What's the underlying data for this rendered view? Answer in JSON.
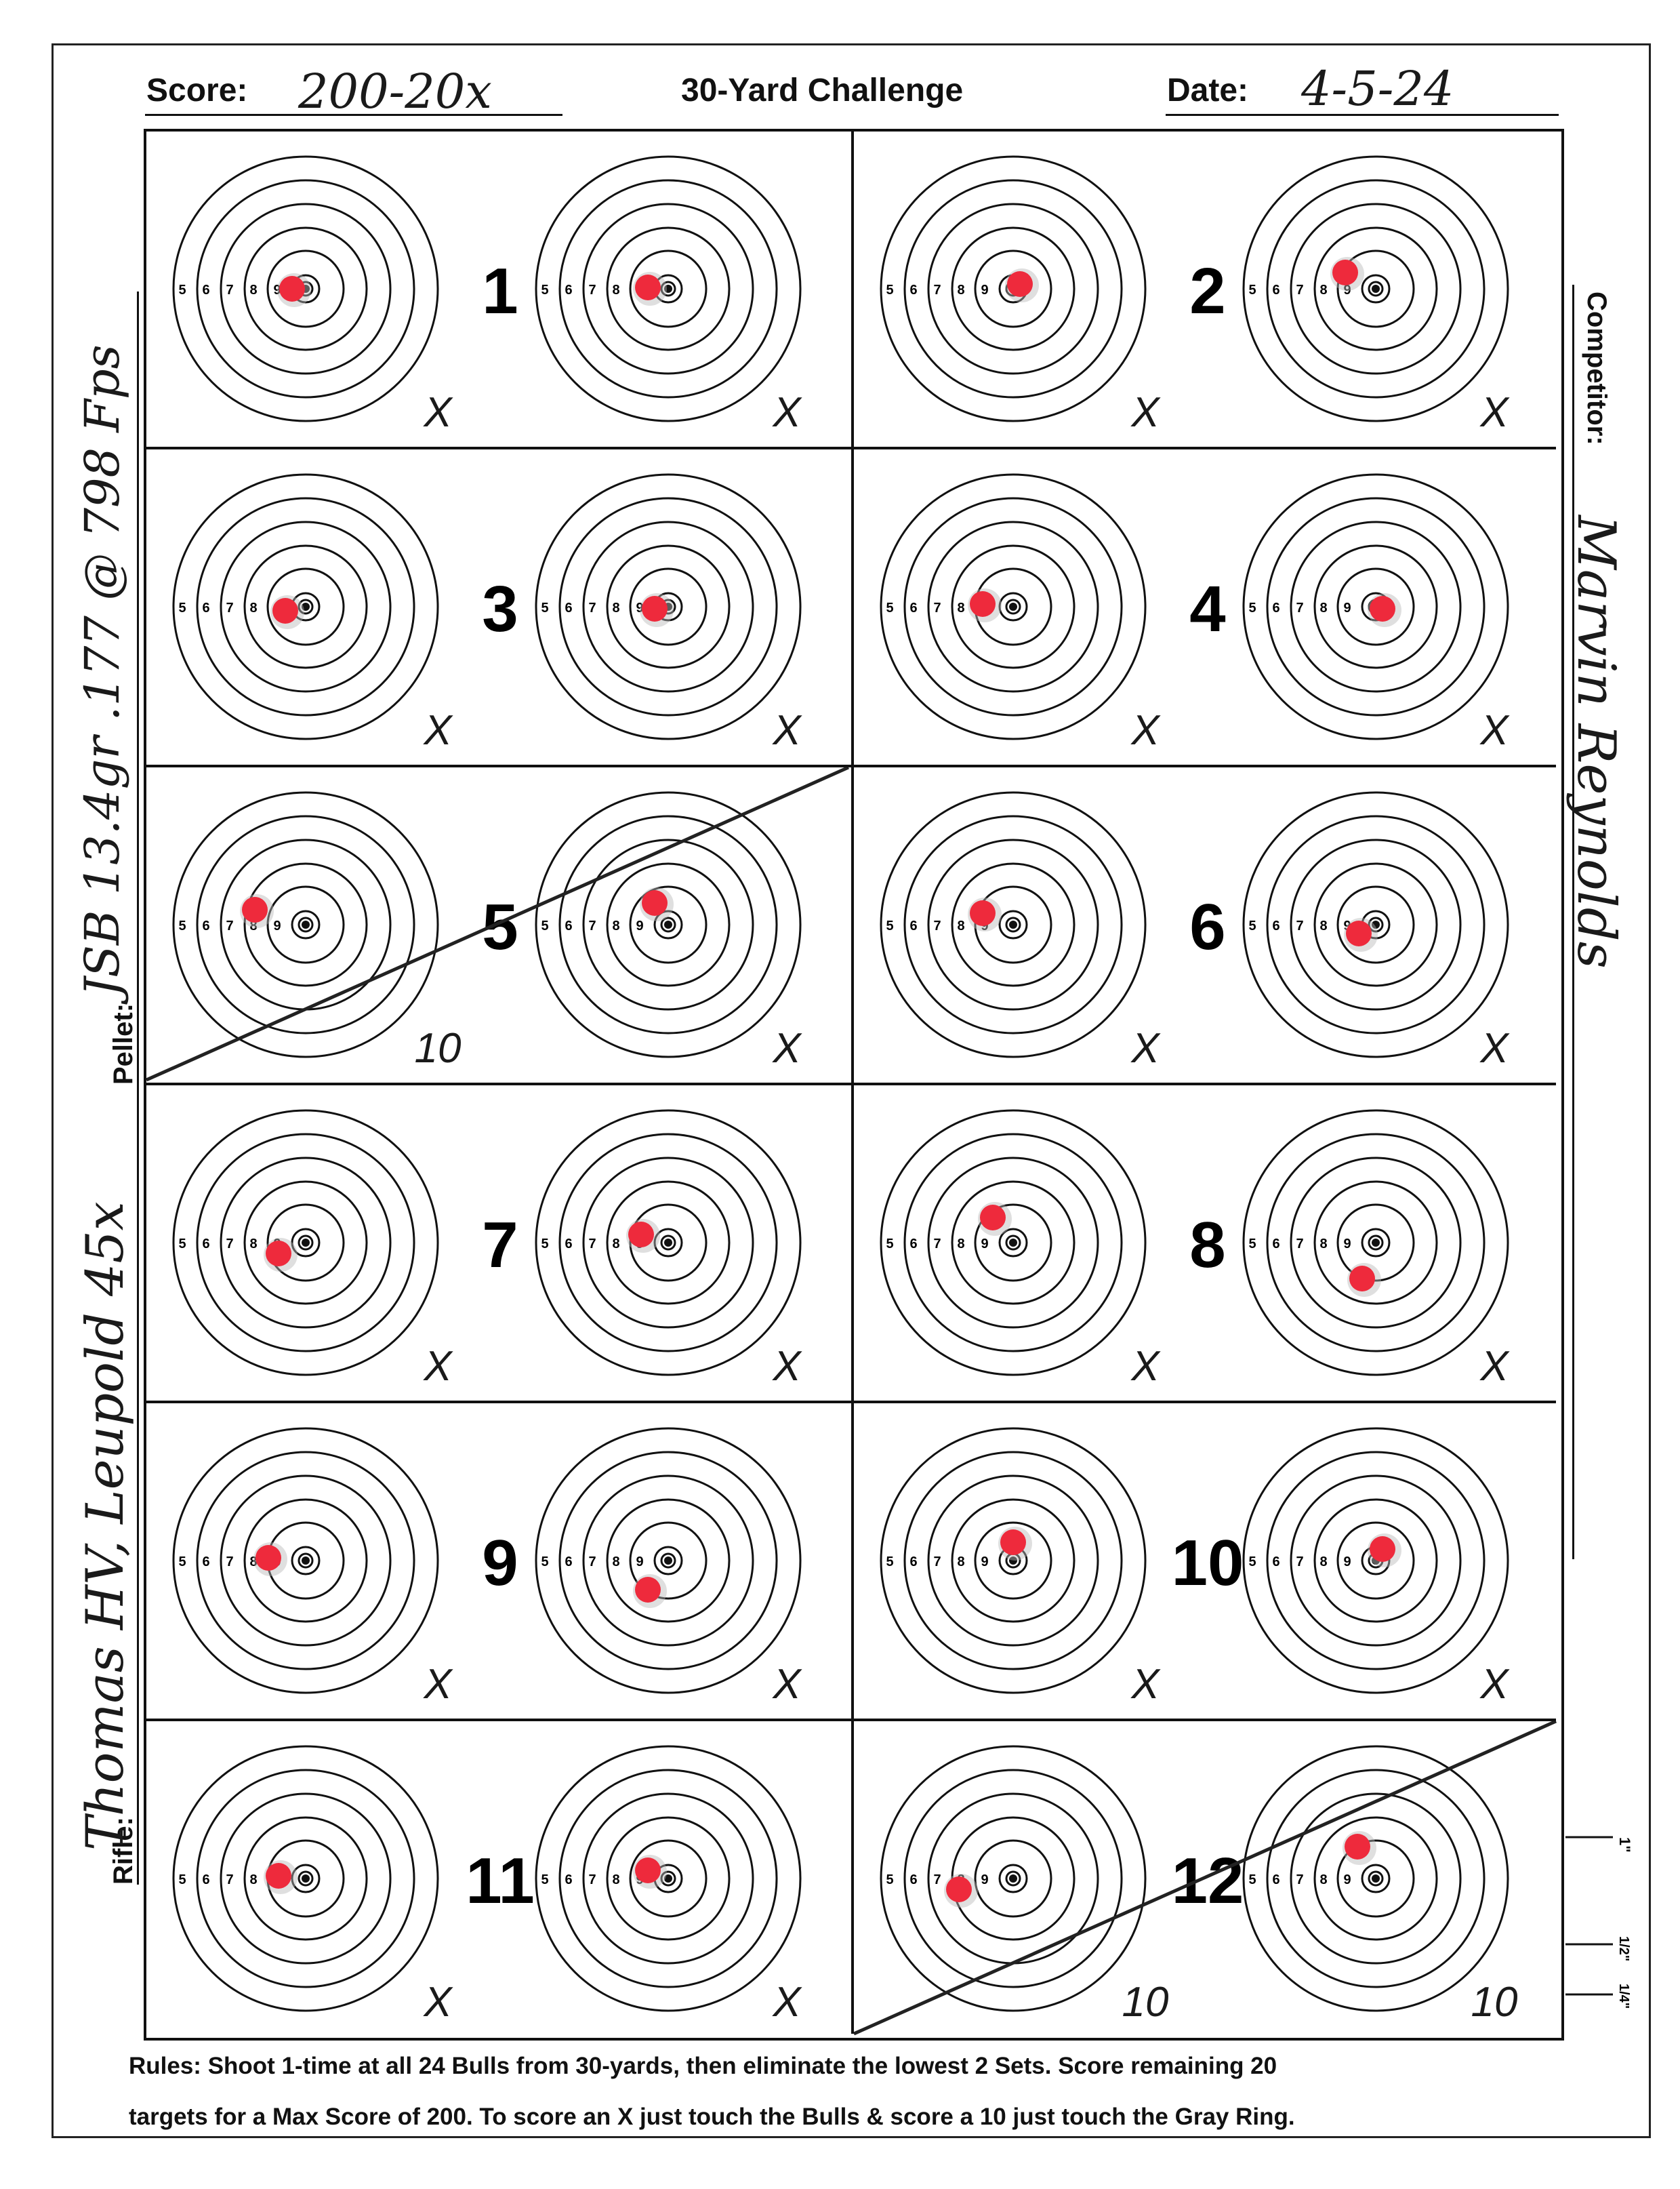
{
  "header": {
    "score_label": "Score:",
    "score_value": "200-20x",
    "title": "30-Yard Challenge",
    "date_label": "Date:",
    "date_value": "4-5-24"
  },
  "side_labels": {
    "pellet_label": "Pellet:",
    "pellet_value": "JSB 13.4gr .177 @ 798 Fps",
    "rifle_label": "Rifle:",
    "rifle_value": "Thomas HV, Leupold 45x",
    "competitor_label": "Competitor:",
    "competitor_value": "Marvin Reynolds"
  },
  "ring_labels": [
    "5",
    "6",
    "7",
    "8",
    "9"
  ],
  "scale_marks": [
    "1\"",
    "1/2\"",
    "1/4\""
  ],
  "targets": [
    {
      "set": "1",
      "left_mark": "X",
      "right_mark": "X",
      "eliminated": false
    },
    {
      "set": "2",
      "left_mark": "X",
      "right_mark": "X",
      "eliminated": false
    },
    {
      "set": "3",
      "left_mark": "X",
      "right_mark": "X",
      "eliminated": false
    },
    {
      "set": "4",
      "left_mark": "X",
      "right_mark": "X",
      "eliminated": false
    },
    {
      "set": "5",
      "left_mark": "10",
      "right_mark": "X",
      "eliminated": true
    },
    {
      "set": "6",
      "left_mark": "X",
      "right_mark": "X",
      "eliminated": false
    },
    {
      "set": "7",
      "left_mark": "X",
      "right_mark": "X",
      "eliminated": false
    },
    {
      "set": "8",
      "left_mark": "X",
      "right_mark": "X",
      "eliminated": false
    },
    {
      "set": "9",
      "left_mark": "X",
      "right_mark": "X",
      "eliminated": false
    },
    {
      "set": "10",
      "left_mark": "X",
      "right_mark": "X",
      "eliminated": false
    },
    {
      "set": "11",
      "left_mark": "X",
      "right_mark": "X",
      "eliminated": false
    },
    {
      "set": "12",
      "left_mark": "10",
      "right_mark": "10",
      "eliminated": true
    }
  ],
  "rules": {
    "line1": "Rules: Shoot 1-time at all 24 Bulls from 30-yards, then eliminate the lowest 2 Sets. Score remaining 20",
    "line2": "targets for a Max Score of 200. To score an X just touch the Bulls & score a 10 just touch the Gray Ring."
  },
  "colors": {
    "ink": "#111111",
    "hole": "#ee2a3c",
    "tear": "#b9b9b9"
  }
}
